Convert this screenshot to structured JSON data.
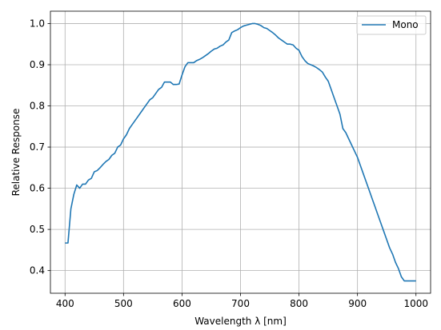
{
  "chart_data": {
    "type": "line",
    "title": "",
    "xlabel": "Wavelength λ [nm]",
    "ylabel": "Relative Response",
    "xlim": [
      375,
      1025
    ],
    "ylim": [
      0.345,
      1.03
    ],
    "xticks": [
      400,
      500,
      600,
      700,
      800,
      900,
      1000
    ],
    "yticks": [
      0.4,
      0.5,
      0.6,
      0.7,
      0.8,
      0.9,
      1.0
    ],
    "xtick_labels": [
      "400",
      "500",
      "600",
      "700",
      "800",
      "900",
      "1000"
    ],
    "ytick_labels": [
      "0.4",
      "0.5",
      "0.6",
      "0.7",
      "0.8",
      "0.9",
      "1.0"
    ],
    "grid": true,
    "legend": "top-right",
    "color": "#1f77b4",
    "series": [
      {
        "name": "Mono",
        "x": [
          400,
          405,
          410,
          415,
          420,
          425,
          430,
          435,
          440,
          445,
          450,
          455,
          460,
          465,
          470,
          475,
          480,
          485,
          490,
          495,
          500,
          505,
          510,
          515,
          520,
          525,
          530,
          535,
          540,
          545,
          550,
          555,
          560,
          565,
          570,
          575,
          580,
          585,
          590,
          595,
          600,
          605,
          610,
          615,
          620,
          625,
          630,
          635,
          640,
          645,
          650,
          655,
          660,
          665,
          670,
          675,
          680,
          685,
          690,
          695,
          700,
          705,
          710,
          715,
          720,
          725,
          730,
          735,
          740,
          745,
          750,
          755,
          760,
          765,
          770,
          775,
          780,
          785,
          790,
          795,
          800,
          805,
          810,
          815,
          820,
          825,
          830,
          835,
          840,
          845,
          850,
          855,
          860,
          865,
          870,
          875,
          880,
          885,
          890,
          895,
          900,
          905,
          910,
          915,
          920,
          925,
          930,
          935,
          940,
          945,
          950,
          955,
          960,
          965,
          970,
          975,
          980,
          985,
          990,
          995,
          1000
        ],
        "y": [
          0.467,
          0.467,
          0.55,
          0.585,
          0.608,
          0.6,
          0.61,
          0.61,
          0.62,
          0.624,
          0.64,
          0.643,
          0.65,
          0.658,
          0.665,
          0.67,
          0.68,
          0.685,
          0.7,
          0.705,
          0.72,
          0.73,
          0.745,
          0.755,
          0.765,
          0.775,
          0.785,
          0.795,
          0.805,
          0.815,
          0.82,
          0.83,
          0.84,
          0.845,
          0.858,
          0.858,
          0.858,
          0.852,
          0.852,
          0.853,
          0.875,
          0.895,
          0.905,
          0.905,
          0.905,
          0.91,
          0.913,
          0.917,
          0.922,
          0.927,
          0.933,
          0.938,
          0.94,
          0.945,
          0.948,
          0.955,
          0.96,
          0.978,
          0.982,
          0.985,
          0.99,
          0.994,
          0.996,
          0.998,
          1.0,
          1.0,
          0.998,
          0.995,
          0.99,
          0.988,
          0.983,
          0.978,
          0.972,
          0.965,
          0.96,
          0.955,
          0.95,
          0.95,
          0.948,
          0.94,
          0.935,
          0.92,
          0.91,
          0.903,
          0.9,
          0.897,
          0.893,
          0.888,
          0.882,
          0.87,
          0.86,
          0.84,
          0.82,
          0.8,
          0.78,
          0.745,
          0.735,
          0.72,
          0.705,
          0.69,
          0.675,
          0.655,
          0.635,
          0.615,
          0.595,
          0.575,
          0.555,
          0.535,
          0.515,
          0.495,
          0.475,
          0.455,
          0.44,
          0.42,
          0.405,
          0.385,
          0.375,
          0.375,
          0.375,
          0.375,
          0.375
        ]
      }
    ]
  }
}
